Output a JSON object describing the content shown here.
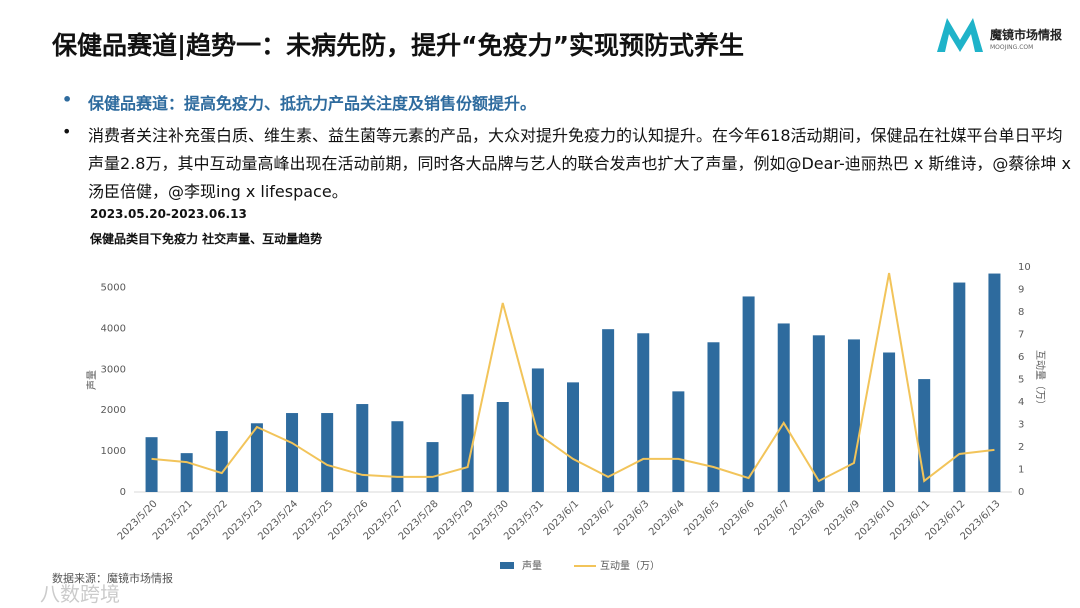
{
  "header": {
    "title": "保健品赛道|趋势一：未病先防，提升“免疫力”实现预防式养生",
    "logo_name": "魔镜市场情报",
    "logo_sub": "MOOJING.COM"
  },
  "bullets": [
    "保健品赛道：提高免疫力、抵抗力产品关注度及销售份额提升。",
    "消费者关注补充蛋白质、维生素、益生菌等元素的产品，大众对提升免疫力的认知提升。在今年618活动期间，保健品在社媒平台单日平均声量2.8万，其中互动量高峰出现在活动前期，同时各大品牌与艺人的联合发声也扩大了声量，例如@Dear-迪丽热巴 x 斯维诗，@蔡徐坤 x 汤臣倍健，@李现ing x lifespace。"
  ],
  "chart_data": {
    "type": "bar",
    "subtitle": "2023.05.20-2023.06.13",
    "title": "保健品类目下免疫力 社交声量、互动量趋势",
    "categories": [
      "2023/5/20",
      "2023/5/21",
      "2023/5/22",
      "2023/5/23",
      "2023/5/24",
      "2023/5/25",
      "2023/5/26",
      "2023/5/27",
      "2023/5/28",
      "2023/5/29",
      "2023/5/30",
      "2023/5/31",
      "2023/6/1",
      "2023/6/2",
      "2023/6/3",
      "2023/6/4",
      "2023/6/5",
      "2023/6/6",
      "2023/6/7",
      "2023/6/8",
      "2023/6/9",
      "2023/6/10",
      "2023/6/11",
      "2023/6/12",
      "2023/6/13"
    ],
    "series": [
      {
        "name": "声量",
        "type": "bar",
        "color": "#2e6b9e",
        "values": [
          1340,
          950,
          1490,
          1680,
          1930,
          1930,
          2150,
          1730,
          1220,
          2390,
          2200,
          3020,
          2680,
          3980,
          3880,
          2460,
          3660,
          4780,
          4120,
          3830,
          3730,
          3410,
          2760,
          5120,
          5340
        ]
      },
      {
        "name": "互动量（万）",
        "type": "line",
        "axis": "y2",
        "color": "#f2c45a",
        "values": [
          1.47,
          1.33,
          0.84,
          2.89,
          2.18,
          1.2,
          0.76,
          0.67,
          0.67,
          1.11,
          8.4,
          2.58,
          1.47,
          0.67,
          1.47,
          1.47,
          1.11,
          0.62,
          3.07,
          0.49,
          1.29,
          9.73,
          0.49,
          1.69,
          1.87
        ]
      }
    ],
    "ylabel": "声量",
    "y2label": "互动量（万）",
    "ylim": [
      0,
      5500
    ],
    "yticks": [
      0,
      1000,
      2000,
      3000,
      4000,
      5000
    ],
    "y2lim": [
      0,
      10
    ],
    "y2ticks": [
      0,
      1,
      2,
      3,
      4,
      5,
      6,
      7,
      8,
      9,
      10
    ]
  },
  "footer": {
    "source": "数据来源：魔镜市场情报",
    "watermark": "八数跨境"
  }
}
